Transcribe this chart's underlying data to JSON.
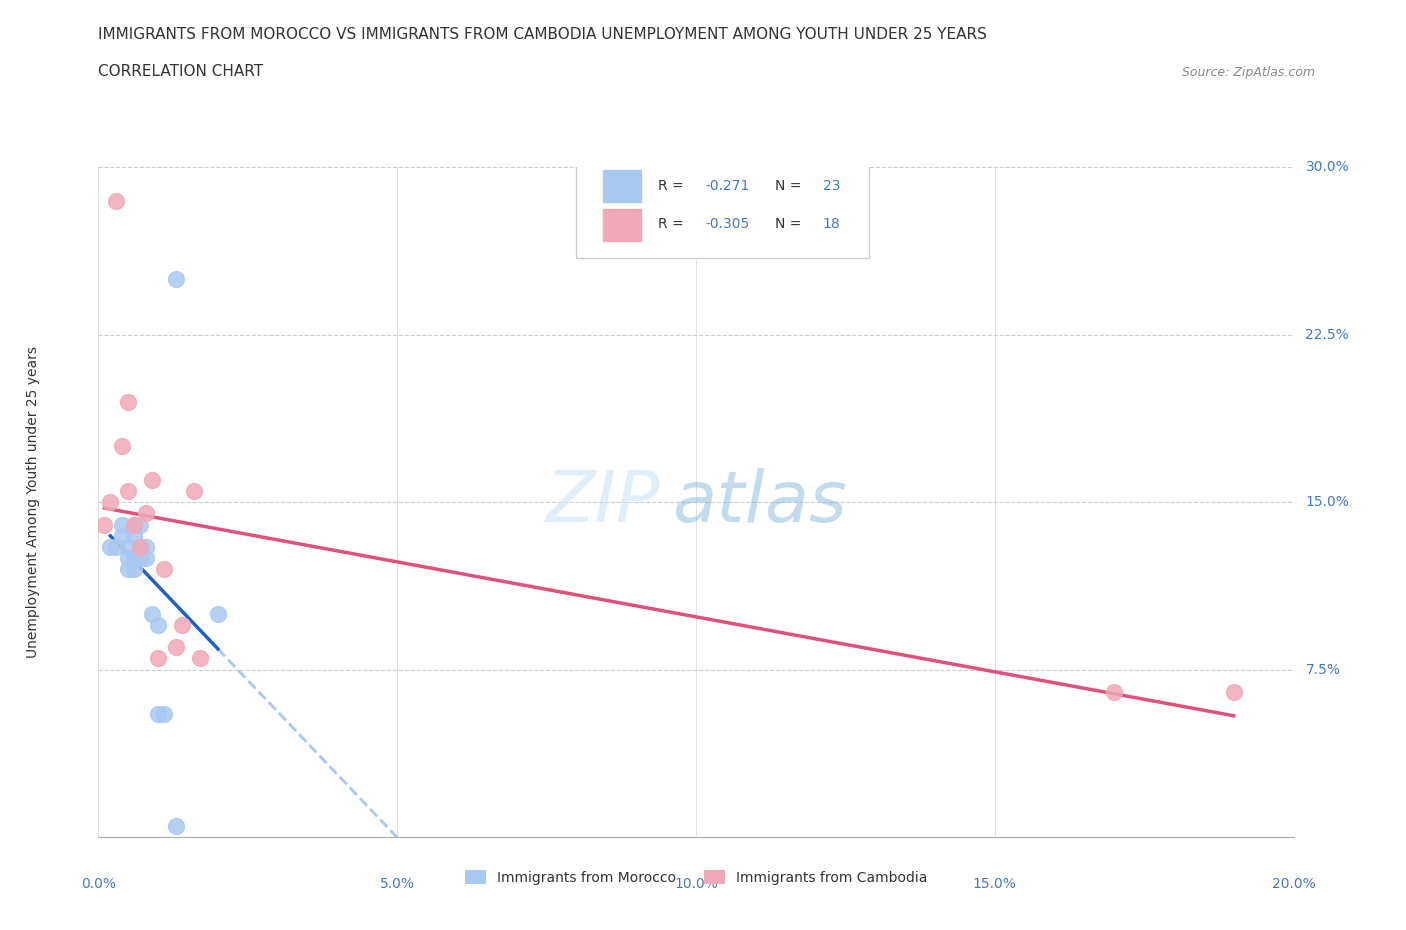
{
  "title_line1": "IMMIGRANTS FROM MOROCCO VS IMMIGRANTS FROM CAMBODIA UNEMPLOYMENT AMONG YOUTH UNDER 25 YEARS",
  "title_line2": "CORRELATION CHART",
  "source_text": "Source: ZipAtlas.com",
  "ylabel": "Unemployment Among Youth under 25 years",
  "watermark_zip": "ZIP",
  "watermark_atlas": "atlas",
  "morocco_x": [
    0.002,
    0.003,
    0.004,
    0.004,
    0.005,
    0.005,
    0.005,
    0.006,
    0.006,
    0.006,
    0.006,
    0.007,
    0.007,
    0.007,
    0.008,
    0.008,
    0.009,
    0.01,
    0.01,
    0.011,
    0.013,
    0.013,
    0.02
  ],
  "morocco_y": [
    0.13,
    0.13,
    0.14,
    0.135,
    0.13,
    0.125,
    0.12,
    0.14,
    0.135,
    0.125,
    0.12,
    0.14,
    0.13,
    0.125,
    0.13,
    0.125,
    0.1,
    0.095,
    0.055,
    0.055,
    0.005,
    0.25,
    0.1
  ],
  "cambodia_x": [
    0.001,
    0.002,
    0.003,
    0.004,
    0.005,
    0.005,
    0.006,
    0.007,
    0.008,
    0.009,
    0.01,
    0.011,
    0.013,
    0.014,
    0.016,
    0.017,
    0.17,
    0.19
  ],
  "cambodia_y": [
    0.14,
    0.15,
    0.285,
    0.175,
    0.155,
    0.195,
    0.14,
    0.13,
    0.145,
    0.16,
    0.08,
    0.12,
    0.085,
    0.095,
    0.155,
    0.08,
    0.065,
    0.065
  ],
  "morocco_color": "#a8c8f0",
  "cambodia_color": "#f0a8b8",
  "morocco_line_color": "#2060c0",
  "cambodia_line_color": "#e0507a",
  "morocco_dashed_color": "#a8c8f0",
  "morocco_R": -0.271,
  "morocco_N": 23,
  "cambodia_R": -0.305,
  "cambodia_N": 18,
  "xlim": [
    0.0,
    0.2
  ],
  "ylim": [
    0.0,
    0.3
  ],
  "xticks": [
    0.0,
    0.05,
    0.1,
    0.15,
    0.2
  ],
  "xtick_labels": [
    "0.0%",
    "5.0%",
    "10.0%",
    "15.0%",
    "20.0%"
  ],
  "yticks": [
    0.0,
    0.075,
    0.15,
    0.225,
    0.3
  ],
  "ytick_labels_right": [
    "",
    "7.5%",
    "15.0%",
    "22.5%",
    "30.0%"
  ],
  "bg_color": "#ffffff",
  "grid_color": "#cccccc",
  "title_fontsize": 11,
  "axis_label_fontsize": 10,
  "tick_fontsize": 10,
  "blue_text_color": "#4477cc",
  "dark_text_color": "#333333",
  "source_color": "#888888"
}
